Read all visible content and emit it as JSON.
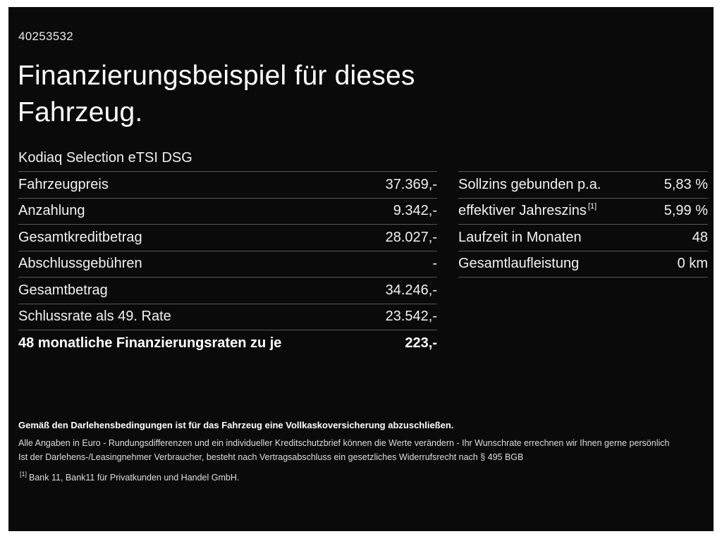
{
  "header": {
    "id_number": "40253532",
    "title_line1": "Finanzierungsbeispiel für dieses",
    "title_line2": "Fahrzeug.",
    "model": "Kodiaq Selection eTSI DSG"
  },
  "left_table": {
    "rows": [
      {
        "label": "Fahrzeugpreis",
        "value": "37.369,-"
      },
      {
        "label": "Anzahlung",
        "value": "9.342,-"
      },
      {
        "label": "Gesamtkreditbetrag",
        "value": "28.027,-"
      },
      {
        "label": "Abschlussgebühren",
        "value": "-"
      },
      {
        "label": "Gesamtbetrag",
        "value": "34.246,-"
      },
      {
        "label": "Schlussrate als 49. Rate",
        "value": "23.542,-"
      },
      {
        "label": "48 monatliche Finanzierungsraten zu je",
        "value": "223,-"
      }
    ]
  },
  "right_table": {
    "rows": [
      {
        "label": "Sollzins gebunden p.a.",
        "sup": "",
        "value": "5,83 %"
      },
      {
        "label": "effektiver Jahreszins",
        "sup": "[1]",
        "value": "5,99 %"
      },
      {
        "label": "Laufzeit in Monaten",
        "sup": "",
        "value": "48"
      },
      {
        "label": "Gesamtlaufleistung",
        "sup": "",
        "value": "0 km"
      }
    ]
  },
  "footnotes": {
    "line1": "Gemäß den Darlehensbedingungen ist für das Fahrzeug eine Vollkaskoversicherung abzuschließen.",
    "line2": "Alle Angaben in Euro - Rundungsdifferenzen und ein individueller Kreditschutzbrief können die Werte verändern - Ihr Wunschrate errechnen wir Ihnen gerne persönlich",
    "line3": "Ist der Darlehens-/Leasingnehmer Verbraucher, besteht nach Vertragsabschluss ein gesetzliches Widerrufsrecht nach § 495 BGB",
    "bank_ref": "[1]",
    "bank_text": "Bank 11, Bank11 für Privatkunden und Handel GmbH."
  },
  "colors": {
    "background": "#0a0a0a",
    "frame": "#ffffff",
    "text": "#f2f2f2",
    "separator": "#565656"
  }
}
